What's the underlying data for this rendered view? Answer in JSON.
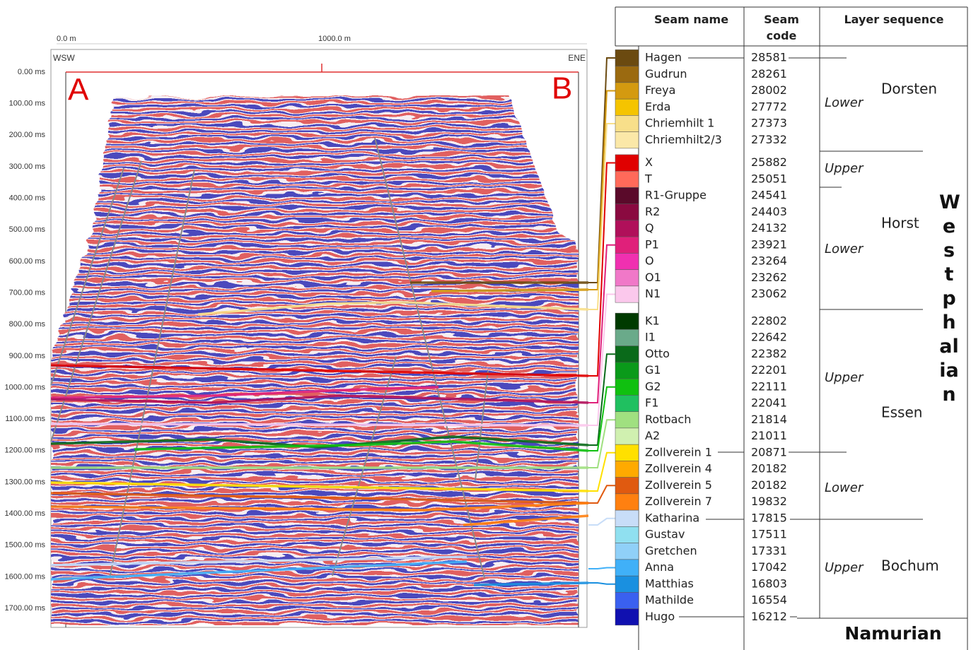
{
  "seismic": {
    "distance_labels": [
      "0.0 m",
      "1000.0 m"
    ],
    "direction_left": "WSW",
    "direction_right": "ENE",
    "point_left": "A",
    "point_right": "B",
    "time_labels": [
      "0.00 ms",
      "100.00 ms",
      "200.00 ms",
      "300.00 ms",
      "400.00 ms",
      "500.00 ms",
      "600.00 ms",
      "700.00 ms",
      "800.00 ms",
      "900.00 ms",
      "1000.00 ms",
      "1100.00 ms",
      "1200.00 ms",
      "1300.00 ms",
      "1400.00 ms",
      "1500.00 ms",
      "1600.00 ms",
      "1700.00 ms"
    ]
  },
  "table": {
    "header": [
      "Seam name",
      "Seam code",
      "Layer sequence"
    ],
    "rows": [
      {
        "name": "Hagen",
        "code": 28581,
        "color": "#6b4a10"
      },
      {
        "name": "Gudrun",
        "code": 28261,
        "color": "#9b6a10"
      },
      {
        "name": "Freya",
        "code": 28002,
        "color": "#d49a10"
      },
      {
        "name": "Erda",
        "code": 27772,
        "color": "#f5c400"
      },
      {
        "name": "Chriemhilt 1",
        "code": 27373,
        "color": "#f8df8a"
      },
      {
        "name": "Chriemhilt2/3",
        "code": 27332,
        "color": "#fbe8a8"
      },
      {
        "name": "X",
        "code": 25882,
        "color": "#e00000"
      },
      {
        "name": "T",
        "code": 25051,
        "color": "#ff6a5a"
      },
      {
        "name": "R1-Gruppe",
        "code": 24541,
        "color": "#5a0a2a"
      },
      {
        "name": "R2",
        "code": 24403,
        "color": "#8a0a40"
      },
      {
        "name": "Q",
        "code": 24132,
        "color": "#b0105a"
      },
      {
        "name": "P1",
        "code": 23921,
        "color": "#e0207a"
      },
      {
        "name": "O",
        "code": 23264,
        "color": "#f030b0"
      },
      {
        "name": "O1",
        "code": 23262,
        "color": "#f078c8"
      },
      {
        "name": "N1",
        "code": 23062,
        "color": "#fbc8ec"
      },
      {
        "name": "K1",
        "code": 22802,
        "color": "#003a00"
      },
      {
        "name": "I1",
        "code": 22642,
        "color": "#6aaa8a"
      },
      {
        "name": "Otto",
        "code": 22382,
        "color": "#0a6a1a"
      },
      {
        "name": "G1",
        "code": 22201,
        "color": "#0a9a1a"
      },
      {
        "name": "G2",
        "code": 22111,
        "color": "#10c010"
      },
      {
        "name": "F1",
        "code": 22041,
        "color": "#20c060"
      },
      {
        "name": "Rotbach",
        "code": 21814,
        "color": "#a0e080"
      },
      {
        "name": "A2",
        "code": 21011,
        "color": "#d0f0b0"
      },
      {
        "name": "Zollverein 1",
        "code": 20871,
        "color": "#ffe000"
      },
      {
        "name": "Zollverein 4",
        "code": 20182,
        "color": "#ffaa00"
      },
      {
        "name": "Zollverein 5",
        "code": 20182,
        "color": "#e05a10"
      },
      {
        "name": "Zollverein 7",
        "code": 19832,
        "color": "#ff8010"
      },
      {
        "name": "Katharina",
        "code": 17815,
        "color": "#c8ddf8"
      },
      {
        "name": "Gustav",
        "code": 17511,
        "color": "#90e0f0"
      },
      {
        "name": "Gretchen",
        "code": 17331,
        "color": "#90d0f8"
      },
      {
        "name": "Anna",
        "code": 17042,
        "color": "#40b0f8"
      },
      {
        "name": "Matthias",
        "code": 16803,
        "color": "#1a90e0"
      },
      {
        "name": "Mathilde",
        "code": 16554,
        "color": "#3a60f0"
      },
      {
        "name": "Hugo",
        "code": 16212,
        "color": "#1010b0"
      }
    ],
    "subdivisions": [
      "Lower",
      "Upper",
      "Lower",
      "Upper",
      "Lower",
      "Upper"
    ],
    "units": [
      "Dorsten",
      "Horst",
      "Essen",
      "Bochum"
    ],
    "stage": "Westphalian",
    "below": "Namurian"
  }
}
